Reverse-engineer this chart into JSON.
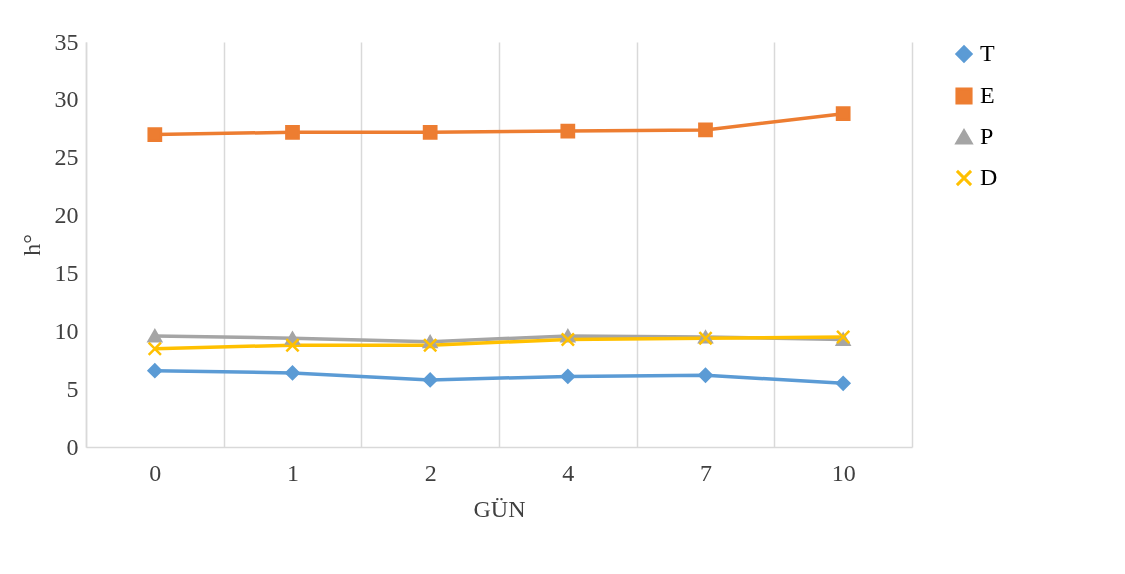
{
  "chart_data": {
    "type": "line",
    "xlabel": "GÜN",
    "ylabel": "h°",
    "categories": [
      "0",
      "1",
      "2",
      "4",
      "7",
      "10"
    ],
    "ylim": [
      0,
      35
    ],
    "yticks": [
      0,
      5,
      10,
      15,
      20,
      25,
      30,
      35
    ],
    "grid": "x",
    "legend": "right",
    "line_style": "solid",
    "series": [
      {
        "name": "T",
        "color": "#5b9bd5",
        "marker": "diamond",
        "values": [
          6.6,
          6.4,
          5.8,
          6.1,
          6.2,
          5.5
        ]
      },
      {
        "name": "E",
        "color": "#ed7d31",
        "marker": "square",
        "values": [
          27.0,
          27.2,
          27.2,
          27.3,
          27.4,
          28.8
        ]
      },
      {
        "name": "P",
        "color": "#a5a5a5",
        "marker": "triangle",
        "values": [
          9.6,
          9.4,
          9.1,
          9.6,
          9.5,
          9.3
        ]
      },
      {
        "name": "D",
        "color": "#ffc000",
        "marker": "cross",
        "values": [
          8.5,
          8.8,
          8.8,
          9.3,
          9.4,
          9.5
        ]
      }
    ]
  }
}
